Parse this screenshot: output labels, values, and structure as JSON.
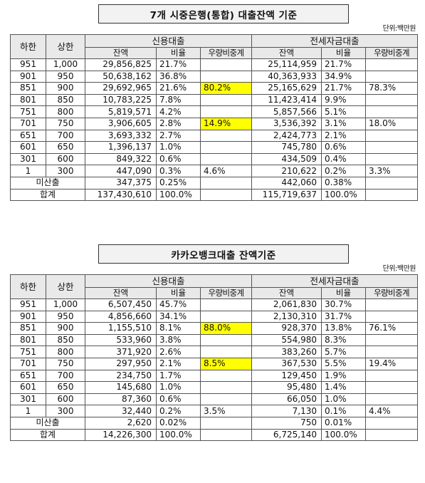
{
  "tables": [
    {
      "title": "7개 시중은행(통합) 대출잔액 기준",
      "unit": "단위:백만원",
      "headers": {
        "low": "하한",
        "high": "상한",
        "credit": "신용대출",
        "jeonse": "전세자금대출",
        "balance": "잔액",
        "ratio": "비율",
        "share": "우량비중계"
      },
      "rows": [
        {
          "lo": "951",
          "hi": "1,000",
          "c_amt": "29,856,825",
          "c_pct": "21.7%",
          "c_share": "",
          "j_amt": "25,114,959",
          "j_pct": "21.7%",
          "j_share": ""
        },
        {
          "lo": "901",
          "hi": "950",
          "c_amt": "50,638,162",
          "c_pct": "36.8%",
          "c_share": "",
          "j_amt": "40,363,933",
          "j_pct": "34.9%",
          "j_share": ""
        },
        {
          "lo": "851",
          "hi": "900",
          "c_amt": "29,692,965",
          "c_pct": "21.6%",
          "c_share": "80.2%",
          "j_amt": "25,165,629",
          "j_pct": "21.7%",
          "j_share": "78.3%"
        },
        {
          "lo": "801",
          "hi": "850",
          "c_amt": "10,783,225",
          "c_pct": "7.8%",
          "c_share": "",
          "j_amt": "11,423,414",
          "j_pct": "9.9%",
          "j_share": ""
        },
        {
          "lo": "751",
          "hi": "800",
          "c_amt": "5,819,571",
          "c_pct": "4.2%",
          "c_share": "",
          "j_amt": "5,857,566",
          "j_pct": "5.1%",
          "j_share": ""
        },
        {
          "lo": "701",
          "hi": "750",
          "c_amt": "3,906,605",
          "c_pct": "2.8%",
          "c_share": "14.9%",
          "j_amt": "3,536,392",
          "j_pct": "3.1%",
          "j_share": "18.0%"
        },
        {
          "lo": "651",
          "hi": "700",
          "c_amt": "3,693,332",
          "c_pct": "2.7%",
          "c_share": "",
          "j_amt": "2,424,773",
          "j_pct": "2.1%",
          "j_share": ""
        },
        {
          "lo": "601",
          "hi": "650",
          "c_amt": "1,396,137",
          "c_pct": "1.0%",
          "c_share": "",
          "j_amt": "745,780",
          "j_pct": "0.6%",
          "j_share": ""
        },
        {
          "lo": "301",
          "hi": "600",
          "c_amt": "849,322",
          "c_pct": "0.6%",
          "c_share": "",
          "j_amt": "434,509",
          "j_pct": "0.4%",
          "j_share": ""
        },
        {
          "lo": "1",
          "hi": "300",
          "c_amt": "447,090",
          "c_pct": "0.3%",
          "c_share": "4.6%",
          "j_amt": "210,622",
          "j_pct": "0.2%",
          "j_share": "3.3%"
        }
      ],
      "unrated": {
        "label": "미산출",
        "c_amt": "347,375",
        "c_pct": "0.25%",
        "j_amt": "442,060",
        "j_pct": "0.38%"
      },
      "total": {
        "label": "합계",
        "c_amt": "137,430,610",
        "c_pct": "100.0%",
        "j_amt": "115,719,637",
        "j_pct": "100.0%"
      }
    },
    {
      "title": "카카오뱅크대출 잔액기준",
      "unit": "단위:백만원",
      "headers": {
        "low": "하한",
        "high": "상한",
        "credit": "신용대출",
        "jeonse": "전세자금대출",
        "balance": "잔액",
        "ratio": "비율",
        "share": "우량비중계"
      },
      "rows": [
        {
          "lo": "951",
          "hi": "1,000",
          "c_amt": "6,507,450",
          "c_pct": "45.7%",
          "c_share": "",
          "j_amt": "2,061,830",
          "j_pct": "30.7%",
          "j_share": ""
        },
        {
          "lo": "901",
          "hi": "950",
          "c_amt": "4,856,660",
          "c_pct": "34.1%",
          "c_share": "",
          "j_amt": "2,130,310",
          "j_pct": "31.7%",
          "j_share": ""
        },
        {
          "lo": "851",
          "hi": "900",
          "c_amt": "1,155,510",
          "c_pct": "8.1%",
          "c_share": "88.0%",
          "j_amt": "928,370",
          "j_pct": "13.8%",
          "j_share": "76.1%"
        },
        {
          "lo": "801",
          "hi": "850",
          "c_amt": "533,960",
          "c_pct": "3.8%",
          "c_share": "",
          "j_amt": "554,980",
          "j_pct": "8.3%",
          "j_share": ""
        },
        {
          "lo": "751",
          "hi": "800",
          "c_amt": "371,920",
          "c_pct": "2.6%",
          "c_share": "",
          "j_amt": "383,260",
          "j_pct": "5.7%",
          "j_share": ""
        },
        {
          "lo": "701",
          "hi": "750",
          "c_amt": "297,950",
          "c_pct": "2.1%",
          "c_share": "8.5%",
          "j_amt": "367,530",
          "j_pct": "5.5%",
          "j_share": "19.4%"
        },
        {
          "lo": "651",
          "hi": "700",
          "c_amt": "234,750",
          "c_pct": "1.7%",
          "c_share": "",
          "j_amt": "129,450",
          "j_pct": "1.9%",
          "j_share": ""
        },
        {
          "lo": "601",
          "hi": "650",
          "c_amt": "145,680",
          "c_pct": "1.0%",
          "c_share": "",
          "j_amt": "95,480",
          "j_pct": "1.4%",
          "j_share": ""
        },
        {
          "lo": "301",
          "hi": "600",
          "c_amt": "87,360",
          "c_pct": "0.6%",
          "c_share": "",
          "j_amt": "66,050",
          "j_pct": "1.0%",
          "j_share": ""
        },
        {
          "lo": "1",
          "hi": "300",
          "c_amt": "32,440",
          "c_pct": "0.2%",
          "c_share": "3.5%",
          "j_amt": "7,130",
          "j_pct": "0.1%",
          "j_share": "4.4%"
        }
      ],
      "unrated": {
        "label": "미산출",
        "c_amt": "2,620",
        "c_pct": "0.02%",
        "j_amt": "750",
        "j_pct": "0.01%"
      },
      "total": {
        "label": "합계",
        "c_amt": "14,226,300",
        "c_pct": "100.0%",
        "j_amt": "6,725,140",
        "j_pct": "100.0%"
      }
    }
  ],
  "colors": {
    "highlight": "#ffff00",
    "header_bg": "#e9e9e9",
    "title_bg": "#f2f2f2"
  }
}
